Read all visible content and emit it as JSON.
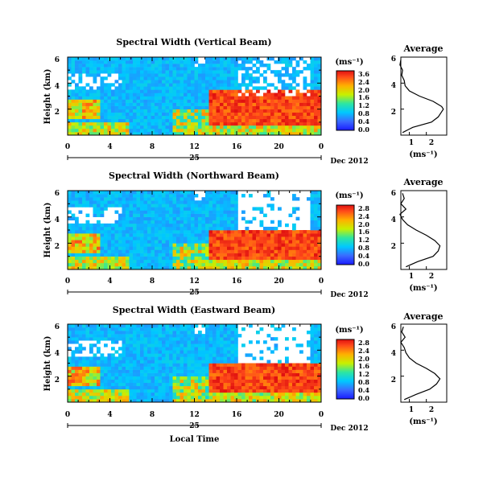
{
  "figure": {
    "xlabel": "Local Time",
    "colorbar_range": [
      0.0,
      3.6
    ]
  },
  "chart_data": [
    {
      "type": "heatmap",
      "title": "Spectral Width (Vertical Beam)",
      "ylabel": "Height (km)",
      "xlim": [
        0,
        24
      ],
      "ylim": [
        0,
        6
      ],
      "xticks": [
        "0",
        "4",
        "8",
        "12",
        "16",
        "20",
        "0"
      ],
      "yticks": [
        "2",
        "4",
        "6"
      ],
      "day_label": "25",
      "date_label": "Dec 2012",
      "colorbar": {
        "unit": "(ms⁻¹)",
        "ticks": [
          "3.6",
          "2.4",
          "2.0",
          "1.6",
          "1.2",
          "0.8",
          "0.4",
          "0.0"
        ]
      },
      "average_profile": {
        "title": "Average",
        "xlabel": "(ms⁻¹)",
        "xticks": [
          "1",
          "2"
        ],
        "yticks": [
          "2",
          "4",
          "6"
        ],
        "height_km": [
          0.2,
          0.6,
          1.0,
          1.4,
          1.8,
          2.0,
          2.2,
          2.6,
          3.0,
          3.4,
          3.8,
          4.2,
          4.6,
          5.0,
          5.4,
          5.8
        ],
        "width_ms": [
          0.6,
          1.2,
          2.3,
          2.7,
          2.9,
          3.0,
          2.9,
          2.4,
          1.6,
          1.0,
          0.75,
          0.7,
          0.55,
          0.6,
          0.45,
          0.5
        ]
      }
    },
    {
      "type": "heatmap",
      "title": "Spectral Width (Northward Beam)",
      "ylabel": "Height (km)",
      "xlim": [
        0,
        24
      ],
      "ylim": [
        0,
        6
      ],
      "xticks": [
        "0",
        "4",
        "8",
        "12",
        "16",
        "20",
        "0"
      ],
      "yticks": [
        "2",
        "4",
        "6"
      ],
      "day_label": "25",
      "date_label": "Dec 2012",
      "colorbar": {
        "unit": "(ms⁻¹)",
        "ticks": [
          "2.8",
          "2.4",
          "2.0",
          "1.6",
          "1.2",
          "0.8",
          "0.4",
          "0.0"
        ]
      },
      "average_profile": {
        "title": "Average",
        "xlabel": "(ms⁻¹)",
        "xticks": [
          "1",
          "2"
        ],
        "yticks": [
          "2",
          "4",
          "6"
        ],
        "height_km": [
          0.2,
          0.6,
          1.0,
          1.4,
          1.8,
          2.2,
          2.6,
          3.0,
          3.4,
          3.8,
          4.2,
          4.6,
          5.0,
          5.4,
          5.8
        ],
        "width_ms": [
          0.8,
          1.5,
          2.4,
          2.7,
          2.8,
          2.5,
          2.0,
          1.4,
          0.9,
          0.6,
          0.45,
          0.8,
          0.5,
          0.7,
          0.6
        ]
      }
    },
    {
      "type": "heatmap",
      "title": "Spectral Width (Eastward Beam)",
      "ylabel": "Height (km)",
      "xlim": [
        0,
        24
      ],
      "ylim": [
        0,
        6
      ],
      "xticks": [
        "0",
        "4",
        "8",
        "12",
        "16",
        "20",
        "0"
      ],
      "yticks": [
        "2",
        "4",
        "6"
      ],
      "day_label": "25",
      "date_label": "Dec 2012",
      "colorbar": {
        "unit": "(ms⁻¹)",
        "ticks": [
          "2.8",
          "2.4",
          "2.0",
          "1.6",
          "1.2",
          "0.8",
          "0.4",
          "0.0"
        ]
      },
      "average_profile": {
        "title": "Average",
        "xlabel": "(ms⁻¹)",
        "xticks": [
          "1",
          "2"
        ],
        "yticks": [
          "2",
          "4",
          "6"
        ],
        "height_km": [
          0.2,
          0.6,
          1.0,
          1.4,
          1.8,
          2.2,
          2.6,
          3.0,
          3.4,
          3.8,
          4.2,
          4.6,
          5.0,
          5.4,
          5.8
        ],
        "width_ms": [
          0.7,
          1.4,
          2.2,
          2.6,
          2.8,
          2.5,
          2.0,
          1.4,
          1.0,
          0.8,
          0.7,
          0.5,
          0.75,
          0.55,
          0.65
        ]
      }
    }
  ]
}
